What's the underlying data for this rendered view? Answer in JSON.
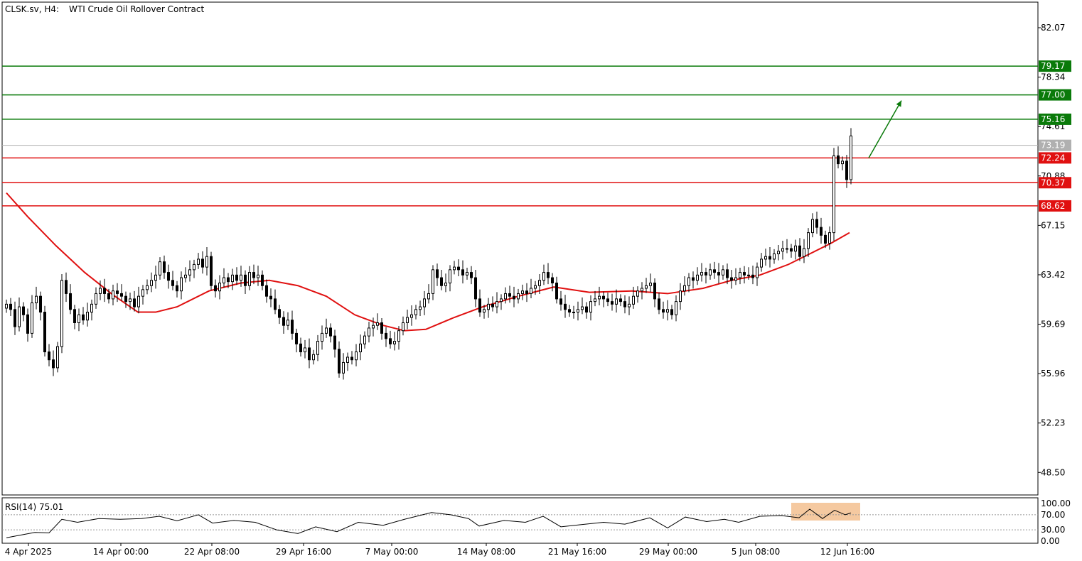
{
  "header": {
    "symbol": "CLSK.sv, H4:",
    "description": "WTI Crude Oil Rollover Contract"
  },
  "rsi": {
    "label": "RSI(14) 75.01",
    "levels": [
      "100.00",
      "70.00",
      "30.00",
      "0.00"
    ],
    "highlight_color": "#f5c9a0"
  },
  "colors": {
    "resistance": "#0a7a0a",
    "support": "#e01010",
    "ma": "#e01010",
    "current": "#b0b0b0",
    "candle": "#000000"
  },
  "chart_data": {
    "type": "line",
    "price_ticks": [
      "82.07",
      "78.34",
      "74.61",
      "70.88",
      "67.15",
      "63.42",
      "59.69",
      "55.96",
      "52.23",
      "48.50"
    ],
    "time_ticks": [
      "4 Apr 2025",
      "14 Apr 00:00",
      "22 Apr 08:00",
      "29 Apr 16:00",
      "7 May 00:00",
      "14 May 08:00",
      "21 May 16:00",
      "29 May 00:00",
      "5 Jun 08:00",
      "12 Jun 16:00"
    ],
    "resistance_levels": [
      {
        "label": "79.17",
        "value": 79.17
      },
      {
        "label": "77.00",
        "value": 77.0
      },
      {
        "label": "75.16",
        "value": 75.16
      }
    ],
    "support_levels": [
      {
        "label": "72.24",
        "value": 72.24
      },
      {
        "label": "70.37",
        "value": 70.37
      },
      {
        "label": "68.62",
        "value": 68.62
      }
    ],
    "current_price": {
      "label": "73.19",
      "value": 73.19
    },
    "close_series": [
      {
        "x": 0,
        "y": 61.2
      },
      {
        "x": 6,
        "y": 60.8
      },
      {
        "x": 12,
        "y": 59.5
      },
      {
        "x": 18,
        "y": 61.0
      },
      {
        "x": 24,
        "y": 60.4
      },
      {
        "x": 30,
        "y": 59.0
      },
      {
        "x": 36,
        "y": 61.3
      },
      {
        "x": 42,
        "y": 61.8
      },
      {
        "x": 48,
        "y": 60.6
      },
      {
        "x": 54,
        "y": 57.6
      },
      {
        "x": 60,
        "y": 57.0
      },
      {
        "x": 66,
        "y": 56.4
      },
      {
        "x": 72,
        "y": 58.0
      },
      {
        "x": 78,
        "y": 63.0
      },
      {
        "x": 84,
        "y": 62.0
      },
      {
        "x": 90,
        "y": 60.8
      },
      {
        "x": 96,
        "y": 59.8
      },
      {
        "x": 102,
        "y": 60.4
      },
      {
        "x": 108,
        "y": 60.0
      },
      {
        "x": 114,
        "y": 60.6
      },
      {
        "x": 120,
        "y": 61.2
      },
      {
        "x": 126,
        "y": 62.0
      },
      {
        "x": 132,
        "y": 62.4
      },
      {
        "x": 138,
        "y": 62.0
      },
      {
        "x": 144,
        "y": 61.6
      },
      {
        "x": 150,
        "y": 62.2
      },
      {
        "x": 156,
        "y": 62.0
      },
      {
        "x": 162,
        "y": 61.8
      },
      {
        "x": 168,
        "y": 61.4
      },
      {
        "x": 174,
        "y": 61.6
      },
      {
        "x": 180,
        "y": 61.0
      },
      {
        "x": 186,
        "y": 61.8
      },
      {
        "x": 192,
        "y": 62.3
      },
      {
        "x": 198,
        "y": 62.6
      },
      {
        "x": 204,
        "y": 63.0
      },
      {
        "x": 210,
        "y": 63.4
      },
      {
        "x": 216,
        "y": 64.4
      },
      {
        "x": 222,
        "y": 63.6
      },
      {
        "x": 228,
        "y": 63.0
      },
      {
        "x": 234,
        "y": 62.6
      },
      {
        "x": 240,
        "y": 62.2
      },
      {
        "x": 246,
        "y": 63.2
      },
      {
        "x": 252,
        "y": 63.4
      },
      {
        "x": 258,
        "y": 63.8
      },
      {
        "x": 264,
        "y": 64.2
      },
      {
        "x": 270,
        "y": 64.6
      },
      {
        "x": 276,
        "y": 64.0
      },
      {
        "x": 282,
        "y": 64.8
      },
      {
        "x": 288,
        "y": 62.6
      },
      {
        "x": 294,
        "y": 62.2
      },
      {
        "x": 300,
        "y": 62.8
      },
      {
        "x": 306,
        "y": 63.2
      },
      {
        "x": 312,
        "y": 62.9
      },
      {
        "x": 318,
        "y": 63.4
      },
      {
        "x": 324,
        "y": 63.0
      },
      {
        "x": 330,
        "y": 63.4
      },
      {
        "x": 336,
        "y": 62.6
      },
      {
        "x": 342,
        "y": 63.6
      },
      {
        "x": 348,
        "y": 63.2
      },
      {
        "x": 354,
        "y": 63.4
      },
      {
        "x": 360,
        "y": 62.6
      },
      {
        "x": 366,
        "y": 61.8
      },
      {
        "x": 372,
        "y": 61.6
      },
      {
        "x": 378,
        "y": 60.8
      },
      {
        "x": 384,
        "y": 60.2
      },
      {
        "x": 390,
        "y": 59.6
      },
      {
        "x": 396,
        "y": 60.0
      },
      {
        "x": 402,
        "y": 59.0
      },
      {
        "x": 408,
        "y": 58.2
      },
      {
        "x": 414,
        "y": 57.6
      },
      {
        "x": 420,
        "y": 57.9
      },
      {
        "x": 426,
        "y": 57.0
      },
      {
        "x": 432,
        "y": 57.4
      },
      {
        "x": 438,
        "y": 58.4
      },
      {
        "x": 444,
        "y": 59.0
      },
      {
        "x": 450,
        "y": 59.4
      },
      {
        "x": 456,
        "y": 58.8
      },
      {
        "x": 462,
        "y": 57.8
      },
      {
        "x": 468,
        "y": 56.0
      },
      {
        "x": 474,
        "y": 56.8
      },
      {
        "x": 480,
        "y": 57.2
      },
      {
        "x": 486,
        "y": 57.0
      },
      {
        "x": 492,
        "y": 57.6
      },
      {
        "x": 498,
        "y": 58.2
      },
      {
        "x": 504,
        "y": 58.8
      },
      {
        "x": 510,
        "y": 59.4
      },
      {
        "x": 516,
        "y": 59.6
      },
      {
        "x": 522,
        "y": 59.8
      },
      {
        "x": 528,
        "y": 59.0
      },
      {
        "x": 534,
        "y": 58.6
      },
      {
        "x": 540,
        "y": 58.2
      },
      {
        "x": 546,
        "y": 58.4
      },
      {
        "x": 552,
        "y": 59.2
      },
      {
        "x": 558,
        "y": 59.8
      },
      {
        "x": 564,
        "y": 60.2
      },
      {
        "x": 570,
        "y": 60.4
      },
      {
        "x": 576,
        "y": 60.8
      },
      {
        "x": 582,
        "y": 61.0
      },
      {
        "x": 588,
        "y": 61.6
      },
      {
        "x": 594,
        "y": 62.0
      },
      {
        "x": 600,
        "y": 63.8
      },
      {
        "x": 606,
        "y": 63.2
      },
      {
        "x": 612,
        "y": 62.6
      },
      {
        "x": 618,
        "y": 62.8
      },
      {
        "x": 624,
        "y": 63.8
      },
      {
        "x": 630,
        "y": 64.0
      },
      {
        "x": 636,
        "y": 63.8
      },
      {
        "x": 642,
        "y": 63.4
      },
      {
        "x": 648,
        "y": 63.6
      },
      {
        "x": 654,
        "y": 63.2
      },
      {
        "x": 660,
        "y": 61.6
      },
      {
        "x": 666,
        "y": 60.6
      },
      {
        "x": 672,
        "y": 60.8
      },
      {
        "x": 678,
        "y": 61.2
      },
      {
        "x": 684,
        "y": 61.0
      },
      {
        "x": 690,
        "y": 61.4
      },
      {
        "x": 696,
        "y": 61.6
      },
      {
        "x": 702,
        "y": 62.0
      },
      {
        "x": 708,
        "y": 61.8
      },
      {
        "x": 714,
        "y": 61.6
      },
      {
        "x": 720,
        "y": 62.0
      },
      {
        "x": 726,
        "y": 62.2
      },
      {
        "x": 732,
        "y": 62.0
      },
      {
        "x": 738,
        "y": 62.4
      },
      {
        "x": 744,
        "y": 62.6
      },
      {
        "x": 750,
        "y": 63.0
      },
      {
        "x": 756,
        "y": 63.6
      },
      {
        "x": 762,
        "y": 63.2
      },
      {
        "x": 768,
        "y": 62.8
      },
      {
        "x": 774,
        "y": 61.6
      },
      {
        "x": 780,
        "y": 61.2
      },
      {
        "x": 786,
        "y": 60.8
      },
      {
        "x": 792,
        "y": 60.6
      },
      {
        "x": 798,
        "y": 60.6
      },
      {
        "x": 804,
        "y": 60.8
      },
      {
        "x": 810,
        "y": 61.0
      },
      {
        "x": 816,
        "y": 60.6
      },
      {
        "x": 822,
        "y": 61.4
      },
      {
        "x": 828,
        "y": 61.6
      },
      {
        "x": 834,
        "y": 61.8
      },
      {
        "x": 840,
        "y": 61.6
      },
      {
        "x": 846,
        "y": 61.4
      },
      {
        "x": 852,
        "y": 61.2
      },
      {
        "x": 858,
        "y": 61.6
      },
      {
        "x": 864,
        "y": 61.4
      },
      {
        "x": 870,
        "y": 61.0
      },
      {
        "x": 876,
        "y": 61.2
      },
      {
        "x": 882,
        "y": 61.8
      },
      {
        "x": 888,
        "y": 62.2
      },
      {
        "x": 894,
        "y": 62.4
      },
      {
        "x": 900,
        "y": 62.6
      },
      {
        "x": 906,
        "y": 62.8
      },
      {
        "x": 912,
        "y": 61.6
      },
      {
        "x": 918,
        "y": 60.8
      },
      {
        "x": 924,
        "y": 60.6
      },
      {
        "x": 930,
        "y": 60.8
      },
      {
        "x": 936,
        "y": 60.4
      },
      {
        "x": 942,
        "y": 61.4
      },
      {
        "x": 948,
        "y": 62.2
      },
      {
        "x": 954,
        "y": 62.6
      },
      {
        "x": 960,
        "y": 63.2
      },
      {
        "x": 966,
        "y": 63.0
      },
      {
        "x": 972,
        "y": 63.4
      },
      {
        "x": 978,
        "y": 63.6
      },
      {
        "x": 984,
        "y": 63.4
      },
      {
        "x": 990,
        "y": 63.8
      },
      {
        "x": 996,
        "y": 63.6
      },
      {
        "x": 1002,
        "y": 63.4
      },
      {
        "x": 1008,
        "y": 63.8
      },
      {
        "x": 1014,
        "y": 63.2
      },
      {
        "x": 1020,
        "y": 63.0
      },
      {
        "x": 1026,
        "y": 63.2
      },
      {
        "x": 1032,
        "y": 63.6
      },
      {
        "x": 1038,
        "y": 63.4
      },
      {
        "x": 1044,
        "y": 63.4
      },
      {
        "x": 1050,
        "y": 63.2
      },
      {
        "x": 1056,
        "y": 64.0
      },
      {
        "x": 1062,
        "y": 64.6
      },
      {
        "x": 1068,
        "y": 64.8
      },
      {
        "x": 1074,
        "y": 64.6
      },
      {
        "x": 1080,
        "y": 65.0
      },
      {
        "x": 1086,
        "y": 65.2
      },
      {
        "x": 1092,
        "y": 65.4
      },
      {
        "x": 1098,
        "y": 65.4
      },
      {
        "x": 1104,
        "y": 65.2
      },
      {
        "x": 1110,
        "y": 65.6
      },
      {
        "x": 1116,
        "y": 64.8
      },
      {
        "x": 1122,
        "y": 65.4
      },
      {
        "x": 1128,
        "y": 66.6
      },
      {
        "x": 1134,
        "y": 67.6
      },
      {
        "x": 1140,
        "y": 67.0
      },
      {
        "x": 1146,
        "y": 66.4
      },
      {
        "x": 1152,
        "y": 65.8
      },
      {
        "x": 1158,
        "y": 66.6
      },
      {
        "x": 1164,
        "y": 72.4
      },
      {
        "x": 1170,
        "y": 71.8
      },
      {
        "x": 1176,
        "y": 72.0
      },
      {
        "x": 1182,
        "y": 70.6
      },
      {
        "x": 1188,
        "y": 73.9
      }
    ],
    "ma_series": [
      {
        "x": 0,
        "y": 69.6
      },
      {
        "x": 30,
        "y": 67.8
      },
      {
        "x": 70,
        "y": 65.6
      },
      {
        "x": 110,
        "y": 63.6
      },
      {
        "x": 150,
        "y": 61.9
      },
      {
        "x": 185,
        "y": 60.6
      },
      {
        "x": 210,
        "y": 60.6
      },
      {
        "x": 240,
        "y": 61.0
      },
      {
        "x": 285,
        "y": 62.2
      },
      {
        "x": 330,
        "y": 62.8
      },
      {
        "x": 370,
        "y": 63.0
      },
      {
        "x": 410,
        "y": 62.6
      },
      {
        "x": 450,
        "y": 61.8
      },
      {
        "x": 490,
        "y": 60.4
      },
      {
        "x": 530,
        "y": 59.6
      },
      {
        "x": 560,
        "y": 59.2
      },
      {
        "x": 590,
        "y": 59.3
      },
      {
        "x": 630,
        "y": 60.2
      },
      {
        "x": 670,
        "y": 61.0
      },
      {
        "x": 720,
        "y": 61.8
      },
      {
        "x": 770,
        "y": 62.5
      },
      {
        "x": 820,
        "y": 62.1
      },
      {
        "x": 880,
        "y": 62.2
      },
      {
        "x": 930,
        "y": 62.0
      },
      {
        "x": 980,
        "y": 62.4
      },
      {
        "x": 1020,
        "y": 63.0
      },
      {
        "x": 1060,
        "y": 63.4
      },
      {
        "x": 1100,
        "y": 64.2
      },
      {
        "x": 1130,
        "y": 65.0
      },
      {
        "x": 1160,
        "y": 65.8
      },
      {
        "x": 1186,
        "y": 66.6
      }
    ],
    "rsi_series": [
      {
        "x": 0,
        "y": 9
      },
      {
        "x": 20,
        "y": 16
      },
      {
        "x": 40,
        "y": 23
      },
      {
        "x": 60,
        "y": 22
      },
      {
        "x": 78,
        "y": 58
      },
      {
        "x": 100,
        "y": 50
      },
      {
        "x": 130,
        "y": 60
      },
      {
        "x": 160,
        "y": 58
      },
      {
        "x": 190,
        "y": 60
      },
      {
        "x": 215,
        "y": 66
      },
      {
        "x": 240,
        "y": 54
      },
      {
        "x": 270,
        "y": 70
      },
      {
        "x": 290,
        "y": 48
      },
      {
        "x": 320,
        "y": 55
      },
      {
        "x": 350,
        "y": 50
      },
      {
        "x": 380,
        "y": 30
      },
      {
        "x": 410,
        "y": 20
      },
      {
        "x": 435,
        "y": 38
      },
      {
        "x": 465,
        "y": 25
      },
      {
        "x": 495,
        "y": 50
      },
      {
        "x": 530,
        "y": 42
      },
      {
        "x": 560,
        "y": 58
      },
      {
        "x": 598,
        "y": 76
      },
      {
        "x": 625,
        "y": 70
      },
      {
        "x": 650,
        "y": 60
      },
      {
        "x": 665,
        "y": 40
      },
      {
        "x": 700,
        "y": 55
      },
      {
        "x": 730,
        "y": 50
      },
      {
        "x": 755,
        "y": 66
      },
      {
        "x": 780,
        "y": 38
      },
      {
        "x": 810,
        "y": 44
      },
      {
        "x": 840,
        "y": 50
      },
      {
        "x": 870,
        "y": 45
      },
      {
        "x": 905,
        "y": 62
      },
      {
        "x": 930,
        "y": 35
      },
      {
        "x": 955,
        "y": 64
      },
      {
        "x": 985,
        "y": 52
      },
      {
        "x": 1010,
        "y": 58
      },
      {
        "x": 1030,
        "y": 50
      },
      {
        "x": 1060,
        "y": 66
      },
      {
        "x": 1090,
        "y": 68
      },
      {
        "x": 1115,
        "y": 62
      },
      {
        "x": 1130,
        "y": 85
      },
      {
        "x": 1148,
        "y": 60
      },
      {
        "x": 1165,
        "y": 82
      },
      {
        "x": 1180,
        "y": 70
      },
      {
        "x": 1188,
        "y": 75
      }
    ],
    "ylim": [
      46.8,
      84.0
    ],
    "rsi_ylim": [
      0,
      100
    ]
  }
}
